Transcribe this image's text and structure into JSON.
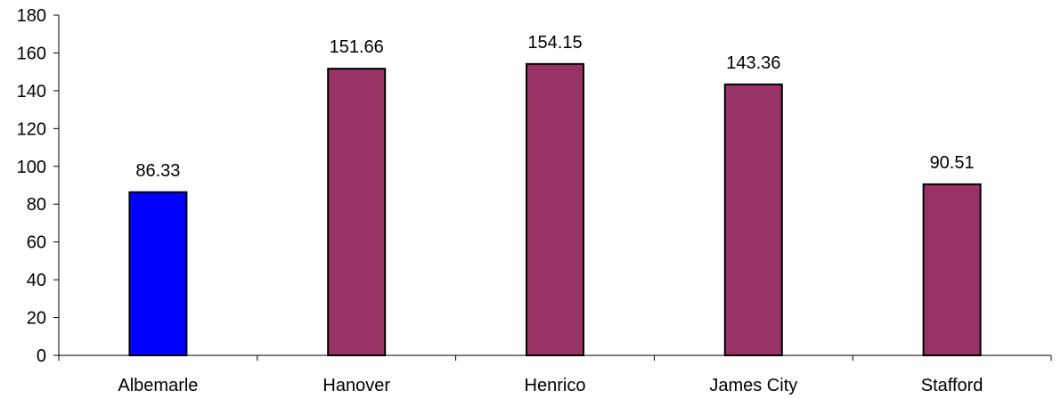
{
  "chart_data": {
    "type": "bar",
    "title": "",
    "xlabel": "",
    "ylabel": "",
    "categories": [
      "Albemarle",
      "Hanover",
      "Henrico",
      "James City",
      "Stafford"
    ],
    "values": [
      86.33,
      151.66,
      154.15,
      143.36,
      90.51
    ],
    "data_labels": [
      "86.33",
      "151.66",
      "154.15",
      "143.36",
      "90.51"
    ],
    "ylim": [
      0,
      180
    ],
    "yticks": [
      0,
      20,
      40,
      60,
      80,
      100,
      120,
      140,
      160,
      180
    ],
    "bar_colors": [
      "#0000FF",
      "#993366",
      "#993366",
      "#993366",
      "#993366"
    ],
    "grid": false,
    "legend": "none"
  }
}
